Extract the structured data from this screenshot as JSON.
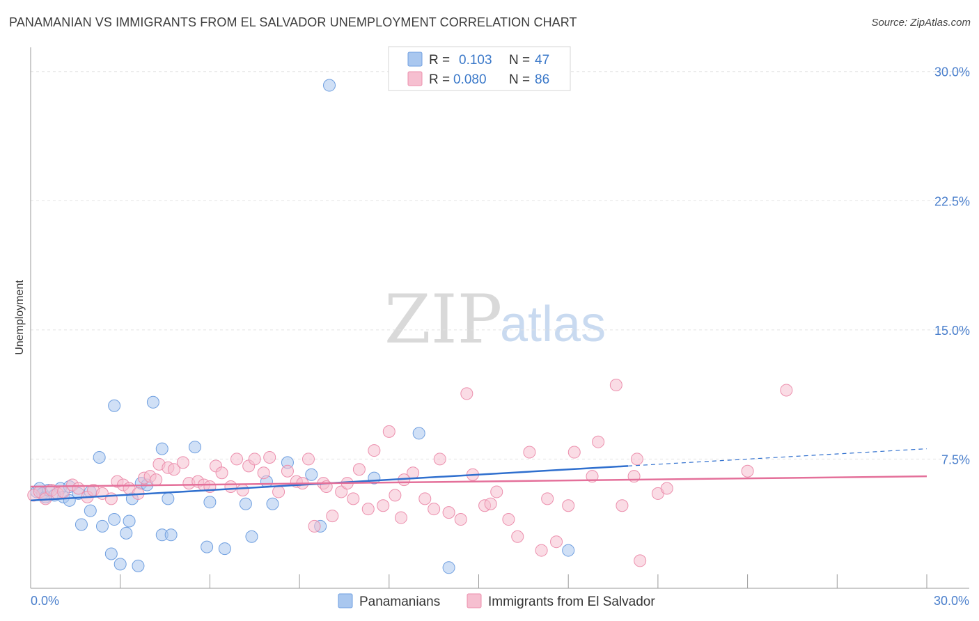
{
  "header": {
    "title": "PANAMANIAN VS IMMIGRANTS FROM EL SALVADOR UNEMPLOYMENT CORRELATION CHART",
    "source": "Source: ZipAtlas.com"
  },
  "watermark": {
    "zip": "ZIP",
    "atlas": "atlas"
  },
  "legend": {
    "rows": [
      {
        "r_label": "R =",
        "r_value": "0.103",
        "n_label": "N =",
        "n_value": "47",
        "color": "#a9c7ef",
        "stroke": "#6f9fe0"
      },
      {
        "r_label": "R =",
        "r_value": "0.080",
        "n_label": "N =",
        "n_value": "86",
        "color": "#f6bfd0",
        "stroke": "#ec8fad"
      }
    ]
  },
  "chart_data": {
    "type": "scatter",
    "title": "PANAMANIAN VS IMMIGRANTS FROM EL SALVADOR UNEMPLOYMENT CORRELATION CHART",
    "xlabel": "",
    "ylabel": "Unemployment",
    "xlim": [
      0,
      30
    ],
    "ylim": [
      0,
      31
    ],
    "x_tick_labels": [
      "0.0%",
      "30.0%"
    ],
    "y_ticks": [
      7.5,
      15.0,
      22.5,
      30.0
    ],
    "y_tick_labels": [
      "7.5%",
      "15.0%",
      "22.5%",
      "30.0%"
    ],
    "grid": true,
    "series": [
      {
        "name": "Panamanians",
        "color": "#a9c7ef",
        "stroke": "#6f9fe0",
        "line_color": "#2f6fce",
        "trend": {
          "x0": 0.0,
          "y0": 5.1,
          "x1": 20.0,
          "y1": 7.1,
          "dash_to_x": 30.0,
          "dash_to_y": 8.1
        },
        "points": [
          [
            0.2,
            5.6
          ],
          [
            0.3,
            5.8
          ],
          [
            0.4,
            5.5
          ],
          [
            0.5,
            5.3
          ],
          [
            1.0,
            5.8
          ],
          [
            1.1,
            5.3
          ],
          [
            1.3,
            5.1
          ],
          [
            1.6,
            5.5
          ],
          [
            2.0,
            4.5
          ],
          [
            1.7,
            3.7
          ],
          [
            2.3,
            7.6
          ],
          [
            2.4,
            3.6
          ],
          [
            2.7,
            2.0
          ],
          [
            2.8,
            4.0
          ],
          [
            2.8,
            10.6
          ],
          [
            3.0,
            1.4
          ],
          [
            3.2,
            3.2
          ],
          [
            3.3,
            3.9
          ],
          [
            3.4,
            5.2
          ],
          [
            3.6,
            1.3
          ],
          [
            3.7,
            6.1
          ],
          [
            3.9,
            6.0
          ],
          [
            4.1,
            10.8
          ],
          [
            4.4,
            8.1
          ],
          [
            4.4,
            3.1
          ],
          [
            4.6,
            5.2
          ],
          [
            4.7,
            3.1
          ],
          [
            5.5,
            8.2
          ],
          [
            5.9,
            2.4
          ],
          [
            6.0,
            5.0
          ],
          [
            6.5,
            2.3
          ],
          [
            7.2,
            4.9
          ],
          [
            7.4,
            3.0
          ],
          [
            7.9,
            6.2
          ],
          [
            8.1,
            4.9
          ],
          [
            8.6,
            7.3
          ],
          [
            9.4,
            6.6
          ],
          [
            9.7,
            3.6
          ],
          [
            10.0,
            29.2
          ],
          [
            11.5,
            6.4
          ],
          [
            13.0,
            9.0
          ],
          [
            14.0,
            1.2
          ],
          [
            18.0,
            2.2
          ],
          [
            0.6,
            5.7
          ],
          [
            0.8,
            5.4
          ],
          [
            2.0,
            5.6
          ],
          [
            1.3,
            5.9
          ]
        ]
      },
      {
        "name": "Immigrants from El Salvador",
        "color": "#f6bfd0",
        "stroke": "#ec8fad",
        "line_color": "#e4709a",
        "trend": {
          "x0": 0.0,
          "y0": 5.9,
          "x1": 30.0,
          "y1": 6.5
        },
        "points": [
          [
            0.1,
            5.4
          ],
          [
            0.3,
            5.6
          ],
          [
            0.5,
            5.2
          ],
          [
            0.7,
            5.7
          ],
          [
            0.9,
            5.5
          ],
          [
            1.1,
            5.6
          ],
          [
            1.4,
            6.0
          ],
          [
            1.6,
            5.8
          ],
          [
            1.9,
            5.3
          ],
          [
            2.1,
            5.7
          ],
          [
            2.4,
            5.5
          ],
          [
            2.7,
            5.2
          ],
          [
            2.9,
            6.2
          ],
          [
            3.1,
            6.0
          ],
          [
            3.3,
            5.8
          ],
          [
            3.6,
            5.5
          ],
          [
            3.8,
            6.4
          ],
          [
            4.0,
            6.5
          ],
          [
            4.2,
            6.3
          ],
          [
            4.3,
            7.2
          ],
          [
            4.6,
            7.0
          ],
          [
            4.8,
            6.9
          ],
          [
            5.1,
            7.3
          ],
          [
            5.3,
            6.1
          ],
          [
            5.6,
            6.2
          ],
          [
            5.8,
            6.0
          ],
          [
            6.0,
            5.9
          ],
          [
            6.2,
            7.1
          ],
          [
            6.4,
            6.7
          ],
          [
            6.7,
            5.9
          ],
          [
            6.9,
            7.5
          ],
          [
            7.1,
            5.7
          ],
          [
            7.3,
            7.1
          ],
          [
            7.5,
            7.5
          ],
          [
            7.8,
            6.7
          ],
          [
            8.0,
            7.6
          ],
          [
            8.3,
            5.6
          ],
          [
            8.6,
            6.8
          ],
          [
            8.9,
            6.2
          ],
          [
            9.1,
            6.1
          ],
          [
            9.3,
            7.5
          ],
          [
            9.5,
            3.6
          ],
          [
            9.8,
            6.1
          ],
          [
            10.1,
            4.2
          ],
          [
            10.4,
            5.6
          ],
          [
            10.6,
            6.1
          ],
          [
            10.8,
            5.2
          ],
          [
            11.0,
            6.9
          ],
          [
            11.3,
            4.6
          ],
          [
            11.5,
            8.0
          ],
          [
            11.8,
            4.8
          ],
          [
            12.0,
            9.1
          ],
          [
            12.2,
            5.4
          ],
          [
            12.4,
            4.1
          ],
          [
            12.8,
            6.7
          ],
          [
            13.2,
            5.2
          ],
          [
            13.5,
            4.6
          ],
          [
            13.7,
            7.5
          ],
          [
            14.0,
            4.4
          ],
          [
            14.4,
            4.0
          ],
          [
            14.6,
            11.3
          ],
          [
            14.8,
            6.6
          ],
          [
            15.2,
            4.8
          ],
          [
            15.4,
            4.9
          ],
          [
            15.6,
            5.6
          ],
          [
            16.0,
            4.0
          ],
          [
            16.3,
            3.0
          ],
          [
            16.7,
            7.9
          ],
          [
            17.1,
            2.2
          ],
          [
            17.3,
            5.2
          ],
          [
            17.6,
            2.7
          ],
          [
            18.0,
            4.8
          ],
          [
            18.2,
            7.9
          ],
          [
            18.8,
            6.5
          ],
          [
            19.0,
            8.5
          ],
          [
            19.6,
            11.8
          ],
          [
            19.8,
            4.8
          ],
          [
            20.2,
            6.5
          ],
          [
            20.3,
            7.5
          ],
          [
            20.4,
            1.6
          ],
          [
            21.0,
            5.5
          ],
          [
            21.3,
            5.8
          ],
          [
            24.0,
            6.8
          ],
          [
            25.3,
            11.5
          ],
          [
            9.9,
            5.9
          ],
          [
            12.5,
            6.3
          ]
        ]
      }
    ],
    "legend_position": "top-center"
  }
}
